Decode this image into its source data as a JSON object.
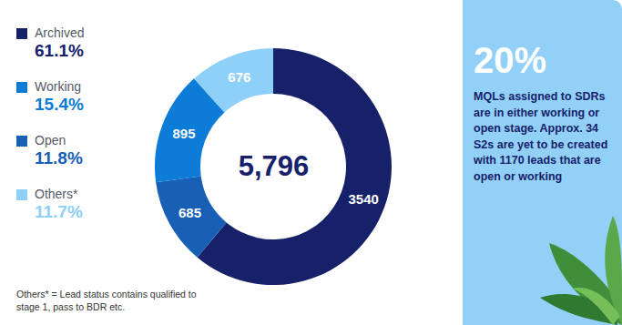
{
  "chart_data": {
    "type": "donut",
    "categories": [
      "Archived",
      "Working",
      "Open",
      "Others*"
    ],
    "values": [
      3540,
      895,
      685,
      676
    ],
    "colors": [
      "#16216a",
      "#0d7bd8",
      "#1860b5",
      "#8fd0f8"
    ],
    "percentages": [
      {
        "value": 61.1,
        "label": "61.1%"
      },
      {
        "value": 15.4,
        "label": "15.4%"
      },
      {
        "value": 11.8,
        "label": "11.8%"
      },
      {
        "value": 11.7,
        "label": "11.7%"
      }
    ],
    "total": {
      "value": 5796,
      "label": "5,796"
    },
    "data_labels": true,
    "legend": "left",
    "annotation": {
      "headline": {
        "value": 20,
        "label": "20%"
      },
      "text": "MQLs assigned to SDRs are in either working or open stage. Approx. 34 S2s are yet to be created with 1170 leads that are open or working"
    },
    "footnote": "Others* = Lead status contains qualified to stage 1, pass to BDR etc."
  }
}
